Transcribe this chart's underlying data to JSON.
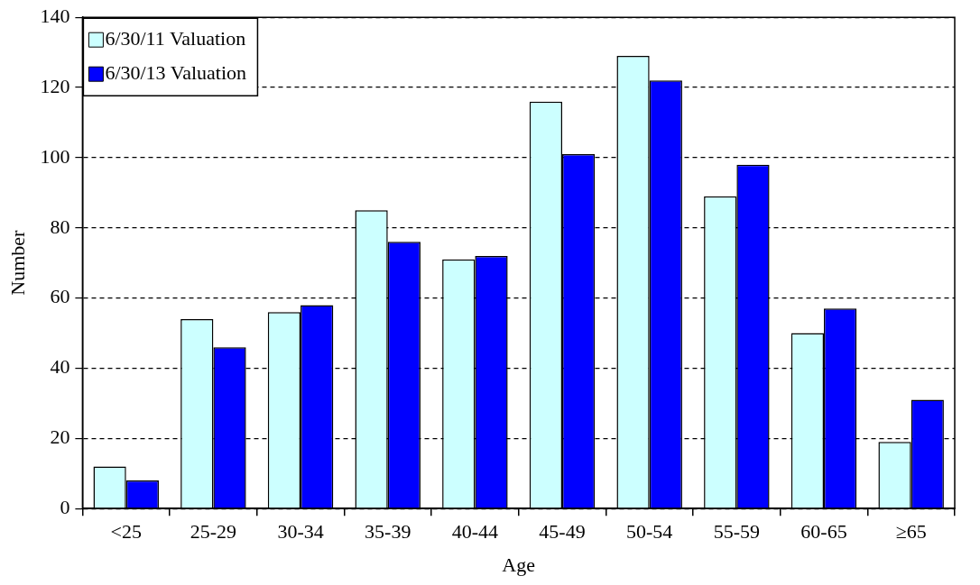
{
  "chart_data": {
    "type": "bar",
    "xlabel": "Age",
    "ylabel": "Number",
    "categories": [
      "<25",
      "25-29",
      "30-34",
      "35-39",
      "40-44",
      "45-49",
      "50-54",
      "55-59",
      "60-65",
      "≥65"
    ],
    "series": [
      {
        "name": "6/30/11 Valuation",
        "color": "#ccffff",
        "values": [
          12,
          54,
          56,
          85,
          71,
          116,
          129,
          89,
          50,
          19
        ]
      },
      {
        "name": "6/30/13 Valuation",
        "color": "#0000ff",
        "values": [
          8,
          46,
          58,
          76,
          72,
          101,
          122,
          98,
          57,
          31
        ]
      }
    ],
    "ylim": [
      0,
      140
    ],
    "yticks": [
      0,
      20,
      40,
      60,
      80,
      100,
      120,
      140
    ],
    "grid": "y",
    "legend": "top left"
  }
}
